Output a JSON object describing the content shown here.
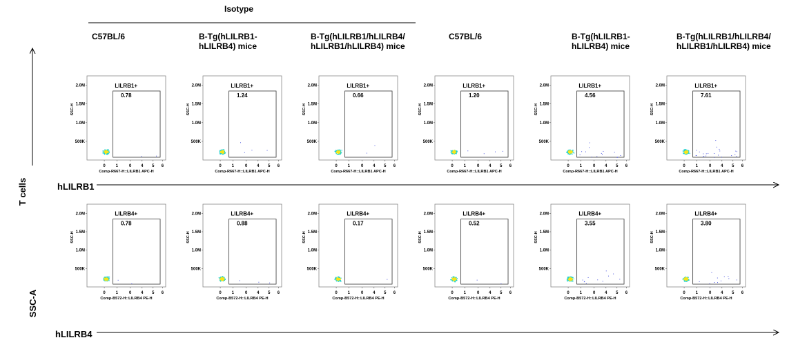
{
  "header": {
    "isotype_label": "Isotype",
    "columns": [
      [
        "C57BL/6"
      ],
      [
        "B-Tg(hLILRB1-",
        "hLILRB4) mice"
      ],
      [
        "B-Tg(hLILRB1/hLILRB4/",
        "hLILRB1/hLILRB4) mice"
      ],
      [
        "C57BL/6"
      ],
      [
        "B-Tg(hLILRB1-",
        "hLILRB4) mice"
      ],
      [
        "B-Tg(hLILRB1/hLILRB4/",
        "hLILRB1/hLILRB4) mice"
      ]
    ]
  },
  "side": {
    "population": "T cells",
    "y_param": "SSC-A",
    "row_labels": [
      "hLILRB1",
      "hLILRB4"
    ]
  },
  "colors": {
    "density_low": "#1e2bd6",
    "density_mid": "#18d0d0",
    "density_high": "#f7e51c",
    "outline": "#777777"
  },
  "chart_data": [
    {
      "type": "scatter",
      "title": "",
      "xlabel": "Comp-R667-H::LILRB1 APC-H",
      "ylabel": "SSC-H",
      "yticks": [
        "500K",
        "1.0M",
        "1.5M",
        "2.0M"
      ],
      "xticks": [
        "0",
        "1",
        "0",
        "4",
        "5",
        "6"
      ],
      "gate_label": "LILRB1+",
      "panels": [
        {
          "column": "C57BL/6",
          "group": "Isotype",
          "gate_pct": "0.78"
        },
        {
          "column": "B-Tg(hLILRB1-hLILRB4) mice",
          "group": "Isotype",
          "gate_pct": "1.24"
        },
        {
          "column": "B-Tg(hLILRB1/hLILRB4/hLILRB1/hLILRB4) mice",
          "group": "Isotype",
          "gate_pct": "0.66"
        },
        {
          "column": "C57BL/6",
          "group": "",
          "gate_pct": "1.20"
        },
        {
          "column": "B-Tg(hLILRB1-hLILRB4) mice",
          "group": "",
          "gate_pct": "4.56"
        },
        {
          "column": "B-Tg(hLILRB1/hLILRB4/hLILRB1/hLILRB4) mice",
          "group": "",
          "gate_pct": "7.61"
        }
      ]
    },
    {
      "type": "scatter",
      "title": "",
      "xlabel": "Comp-B572-H::LILRB4 PE-H",
      "ylabel": "SSC-H",
      "yticks": [
        "500K",
        "1.0M",
        "1.5M",
        "2.0M"
      ],
      "xticks": [
        "0",
        "1",
        "0",
        "4",
        "5",
        "6"
      ],
      "gate_label": "LILRB4+",
      "panels": [
        {
          "column": "C57BL/6",
          "group": "Isotype",
          "gate_pct": "0.78"
        },
        {
          "column": "B-Tg(hLILRB1-hLILRB4) mice",
          "group": "Isotype",
          "gate_pct": "0.88"
        },
        {
          "column": "B-Tg(hLILRB1/hLILRB4/hLILRB1/hLILRB4) mice",
          "group": "Isotype",
          "gate_pct": "0.17"
        },
        {
          "column": "C57BL/6",
          "group": "",
          "gate_pct": "0.52"
        },
        {
          "column": "B-Tg(hLILRB1-hLILRB4) mice",
          "group": "",
          "gate_pct": "3.55"
        },
        {
          "column": "B-Tg(hLILRB1/hLILRB4/hLILRB1/hLILRB4) mice",
          "group": "",
          "gate_pct": "3.80"
        }
      ]
    }
  ]
}
